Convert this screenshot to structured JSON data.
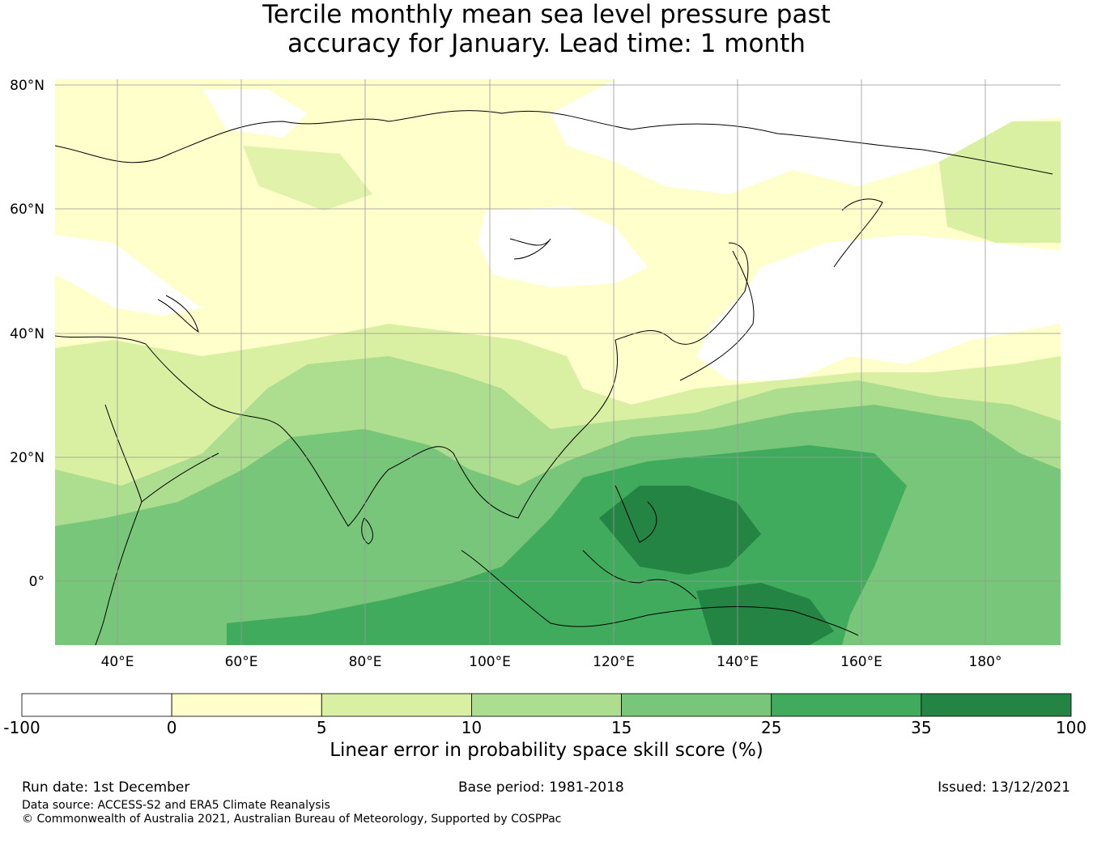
{
  "title": {
    "line1": "Tercile monthly mean sea level pressure past",
    "line2": "accuracy for January. Lead time: 1 month"
  },
  "axes": {
    "lat_labels": [
      "80°N",
      "60°N",
      "40°N",
      "20°N",
      "0°"
    ],
    "lon_labels": [
      "40°E",
      "60°E",
      "80°E",
      "100°E",
      "120°E",
      "140°E",
      "160°E",
      "180°"
    ]
  },
  "colorbar": {
    "label": "Linear error in probability space skill score (%)",
    "ticks": [
      "-100",
      "0",
      "5",
      "10",
      "15",
      "25",
      "35",
      "100"
    ],
    "colors": [
      "#ffffff",
      "#ffffcc",
      "#d9f0a3",
      "#addd8e",
      "#78c679",
      "#41ab5d",
      "#238443"
    ]
  },
  "footer": {
    "run_date": "Run date: 1st December",
    "base_period": "Base period: 1981-2018",
    "issued": "Issued: 13/12/2021",
    "data_source": "Data source: ACCESS-S2 and ERA5 Climate Reanalysis",
    "copyright": "© Commonwealth of Australia 2021, Australian Bureau of Meteorology, Supported by COSPPac"
  }
}
